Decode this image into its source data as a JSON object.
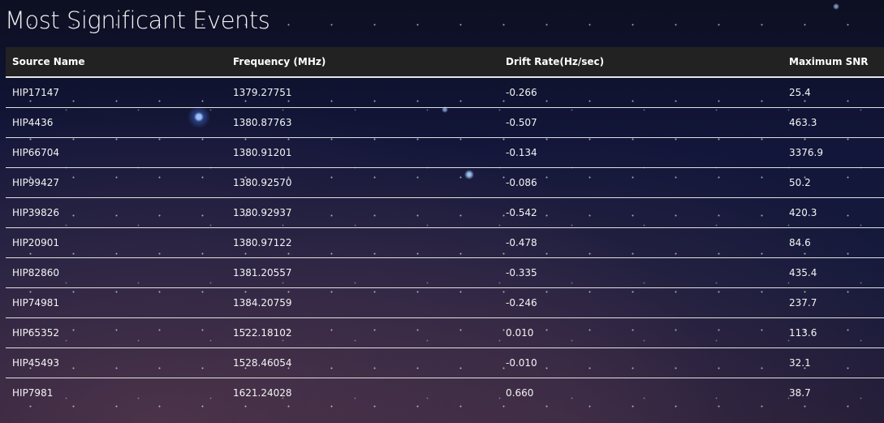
{
  "title": "Most Significant Events",
  "table": {
    "headers": [
      "Source Name",
      "Frequency (MHz)",
      "Drift Rate(Hz/sec)",
      "Maximum SNR"
    ],
    "rows": [
      [
        "HIP17147",
        "1379.27751",
        "-0.266",
        "25.4"
      ],
      [
        "HIP4436",
        "1380.87763",
        "-0.507",
        "463.3"
      ],
      [
        "HIP66704",
        "1380.91201",
        "-0.134",
        "3376.9"
      ],
      [
        "HIP99427",
        "1380.92570",
        "-0.086",
        "50.2"
      ],
      [
        "HIP39826",
        "1380.92937",
        "-0.542",
        "420.3"
      ],
      [
        "HIP20901",
        "1380.97122",
        "-0.478",
        "84.6"
      ],
      [
        "HIP82860",
        "1381.20557",
        "-0.335",
        "435.4"
      ],
      [
        "HIP74981",
        "1384.20759",
        "-0.246",
        "237.7"
      ],
      [
        "HIP65352",
        "1522.18102",
        "0.010",
        "113.6"
      ],
      [
        "HIP45493",
        "1528.46054",
        "-0.010",
        "32.1"
      ],
      [
        "HIP7981",
        "1621.24028",
        "0.660",
        "38.7"
      ]
    ]
  }
}
